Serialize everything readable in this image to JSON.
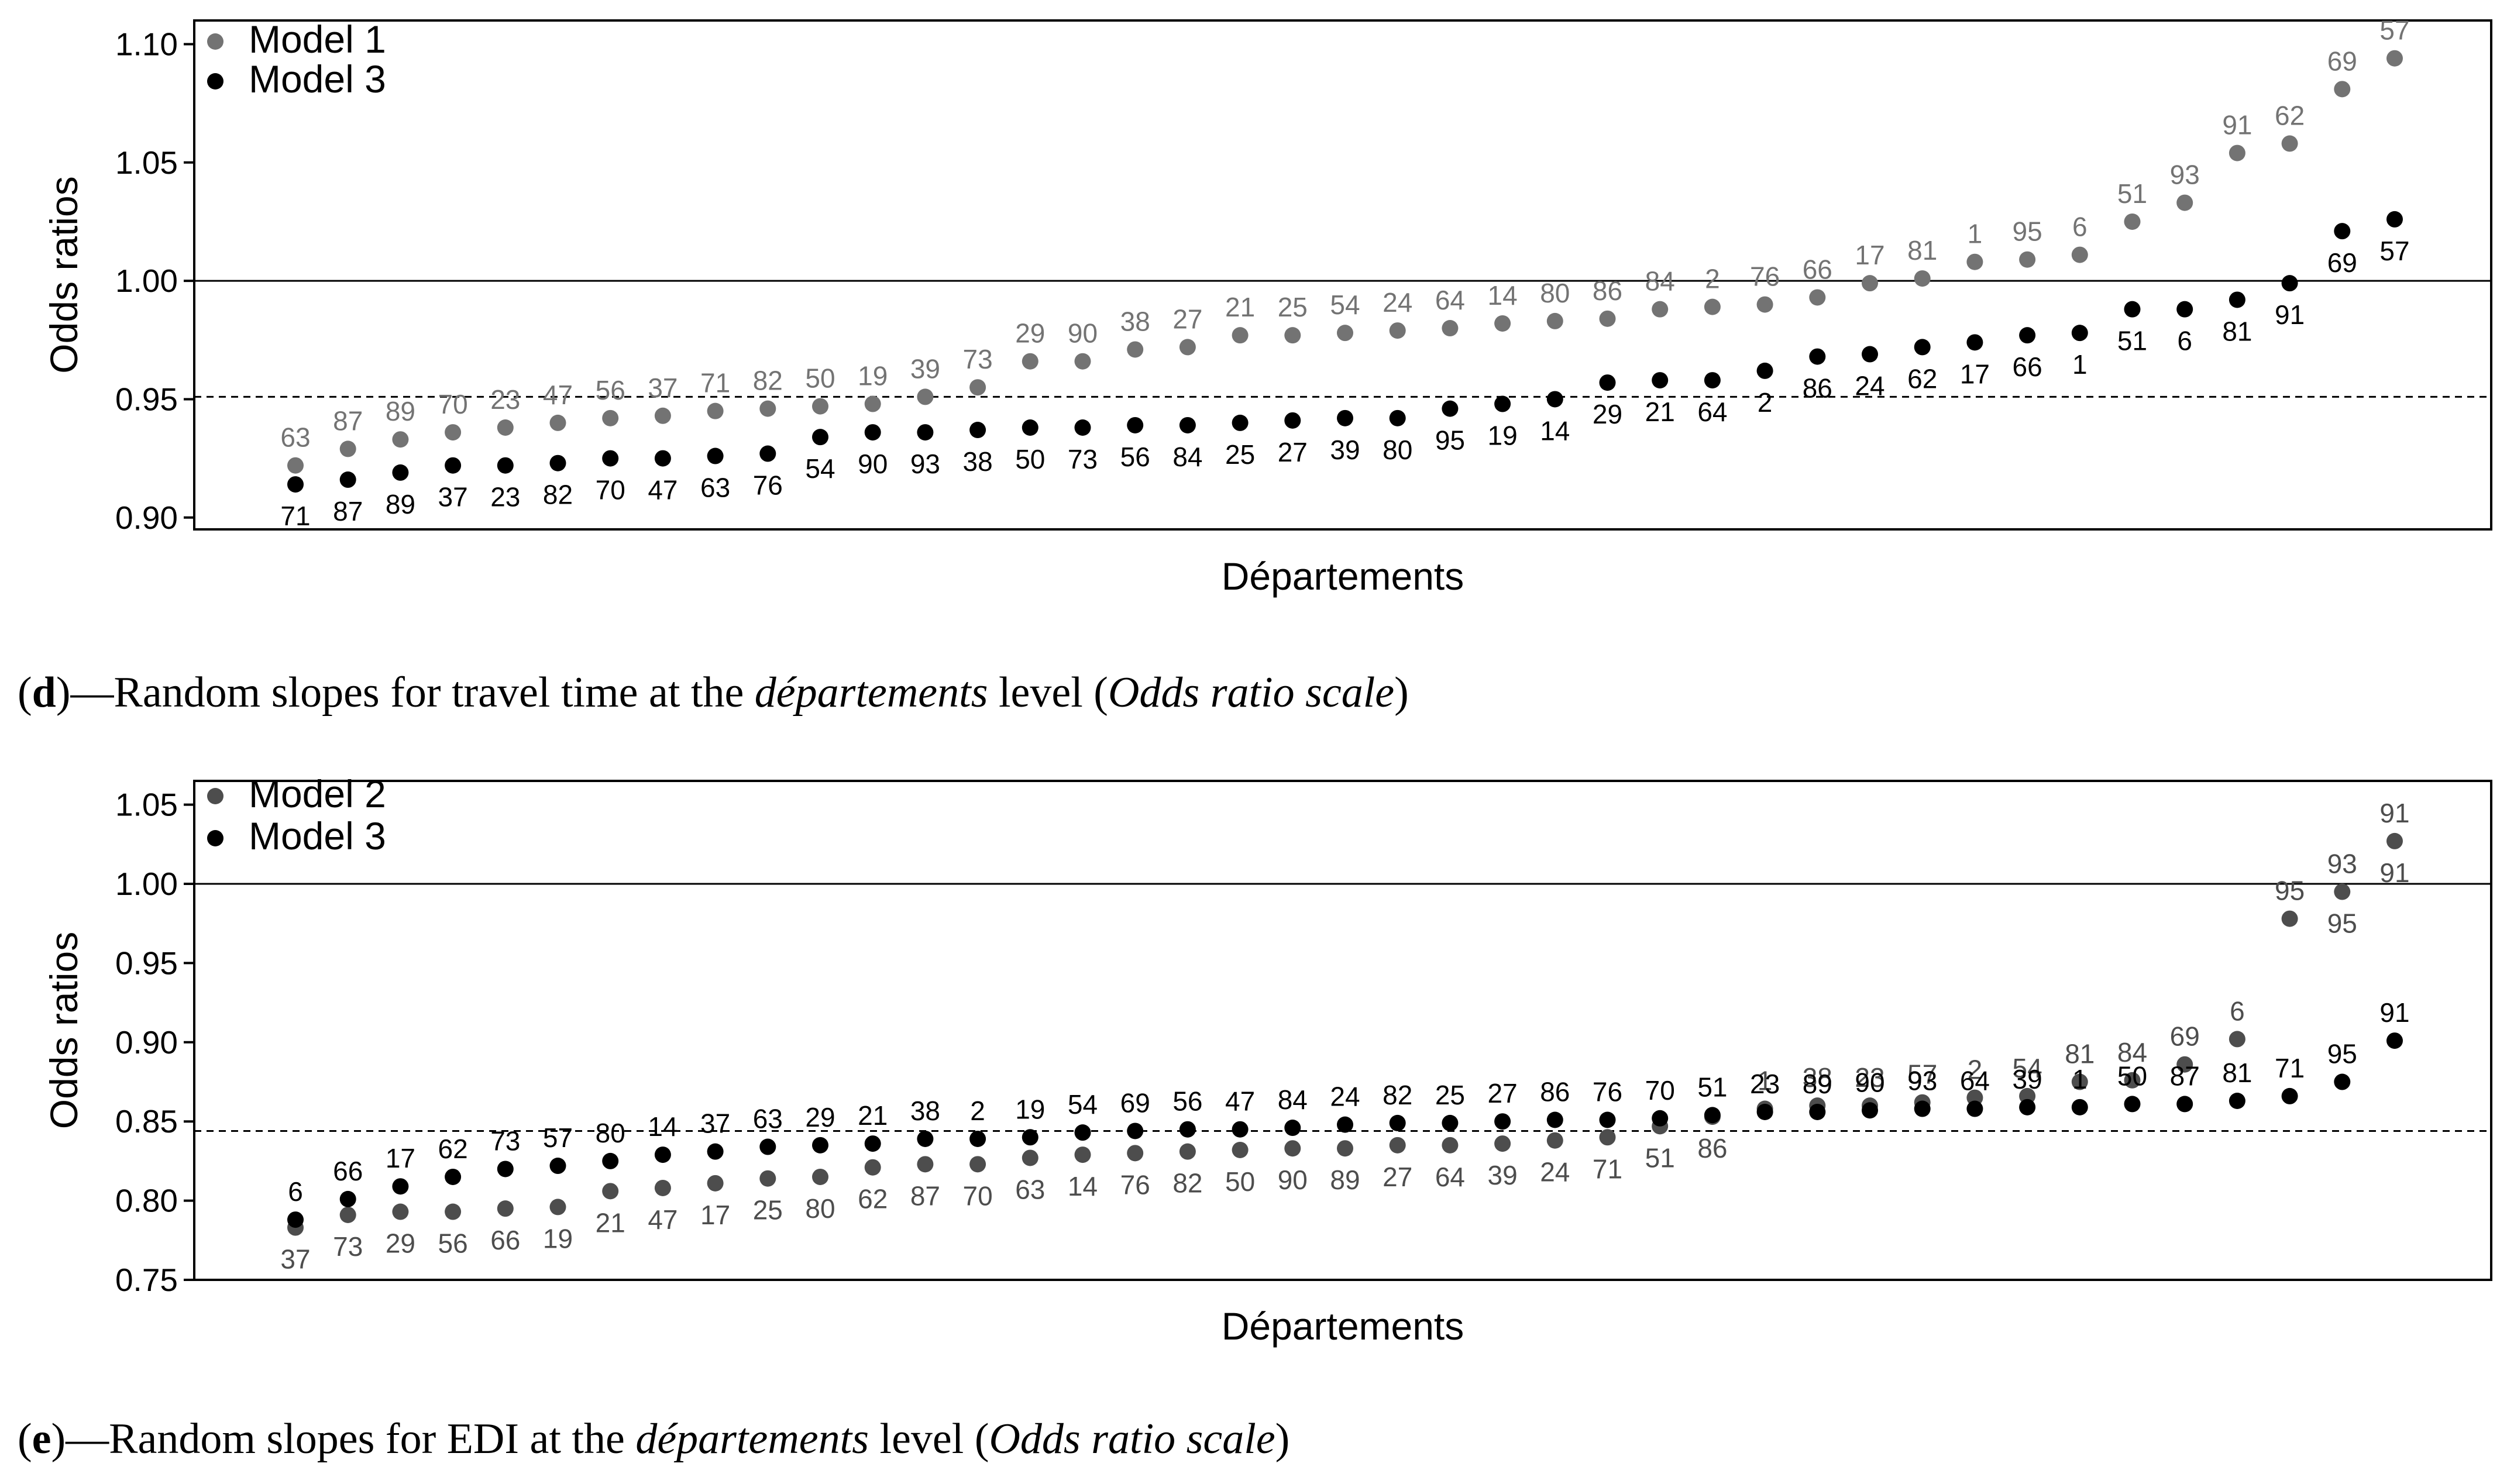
{
  "captions": [
    {
      "open": "(",
      "letter": "d",
      "pre": ")—Random slopes for travel time at the ",
      "italic1": "départements",
      "mid": " level (",
      "italic2": "Odds ratio scale",
      "close": ")"
    },
    {
      "open": "(",
      "letter": "e",
      "pre": ")—Random slopes for EDI at the ",
      "italic1": "départements",
      "mid": " level (",
      "italic2": "Odds ratio scale",
      "close": ")"
    }
  ],
  "chart_data": [
    {
      "type": "scatter",
      "title": "",
      "xlabel": "Départements",
      "ylabel": "Odds ratios",
      "ylim": [
        0.895,
        1.11
      ],
      "yticks": [
        0.9,
        0.95,
        1.0,
        1.05,
        1.1
      ],
      "ytick_labels": [
        "0.90",
        "0.95",
        "1.00",
        "1.05",
        "1.10"
      ],
      "reference_solid": 1.0,
      "reference_dashed": 0.951,
      "legend_position": "top-left",
      "x_positions": 41,
      "series": [
        {
          "name": "Model 1",
          "color": "#737373",
          "label_side": "above",
          "labels": [
            "63",
            "87",
            "89",
            "70",
            "23",
            "47",
            "56",
            "37",
            "71",
            "82",
            "50",
            "19",
            "39",
            "73",
            "29",
            "90",
            "38",
            "27",
            "21",
            "25",
            "54",
            "24",
            "64",
            "14",
            "80",
            "86",
            "84",
            "2",
            "76",
            "66",
            "17",
            "81",
            "1",
            "95",
            "6",
            "51",
            "93",
            "91",
            "62",
            "69",
            "57"
          ],
          "values": [
            0.922,
            0.929,
            0.933,
            0.936,
            0.938,
            0.94,
            0.942,
            0.943,
            0.945,
            0.946,
            0.947,
            0.948,
            0.951,
            0.955,
            0.966,
            0.966,
            0.971,
            0.972,
            0.977,
            0.977,
            0.978,
            0.979,
            0.98,
            0.982,
            0.983,
            0.984,
            0.988,
            0.989,
            0.99,
            0.993,
            0.999,
            1.001,
            1.008,
            1.009,
            1.011,
            1.025,
            1.033,
            1.054,
            1.058,
            1.081,
            1.094
          ]
        },
        {
          "name": "Model 3",
          "color": "#000000",
          "label_side": "below",
          "labels": [
            "71",
            "87",
            "89",
            "37",
            "23",
            "82",
            "70",
            "47",
            "63",
            "76",
            "54",
            "90",
            "93",
            "38",
            "50",
            "73",
            "56",
            "84",
            "25",
            "27",
            "39",
            "80",
            "95",
            "19",
            "14",
            "29",
            "21",
            "64",
            "2",
            "86",
            "24",
            "62",
            "17",
            "66",
            "1",
            "51",
            "6",
            "81",
            "91",
            "69",
            "57"
          ],
          "values": [
            0.914,
            0.916,
            0.919,
            0.922,
            0.922,
            0.923,
            0.925,
            0.925,
            0.926,
            0.927,
            0.934,
            0.936,
            0.936,
            0.937,
            0.938,
            0.938,
            0.939,
            0.939,
            0.94,
            0.941,
            0.942,
            0.942,
            0.946,
            0.948,
            0.95,
            0.957,
            0.958,
            0.958,
            0.962,
            0.968,
            0.969,
            0.972,
            0.974,
            0.977,
            0.978,
            0.988,
            0.988,
            0.992,
            0.999,
            1.021,
            1.026
          ]
        }
      ]
    },
    {
      "type": "scatter",
      "title": "",
      "xlabel": "Départements",
      "ylabel": "Odds ratios",
      "ylim": [
        0.75,
        1.065
      ],
      "yticks": [
        0.75,
        0.8,
        0.85,
        0.9,
        0.95,
        1.0,
        1.05
      ],
      "ytick_labels": [
        "0.75",
        "0.80",
        "0.85",
        "0.90",
        "0.95",
        "1.00",
        "1.05"
      ],
      "reference_solid": 1.0,
      "reference_dashed": 0.844,
      "legend_position": "top-left",
      "x_positions": 41,
      "series": [
        {
          "name": "Model 2",
          "color": "#4d4d4d",
          "label_side": "below",
          "labels": [
            "37",
            "73",
            "29",
            "56",
            "66",
            "19",
            "21",
            "47",
            "17",
            "25",
            "80",
            "62",
            "87",
            "70",
            "63",
            "14",
            "76",
            "82",
            "50",
            "90",
            "89",
            "27",
            "64",
            "39",
            "24",
            "71",
            "51",
            "86",
            "23",
            "89",
            "90",
            "93",
            "64",
            "39",
            "1",
            "50",
            "87",
            "81",
            "71",
            "95",
            "91"
          ],
          "values": [
            0.783,
            0.791,
            0.793,
            0.793,
            0.795,
            0.796,
            0.806,
            0.808,
            0.811,
            0.814,
            0.815,
            0.821,
            0.823,
            0.823,
            0.827,
            0.829,
            0.83,
            0.831,
            0.832,
            0.833,
            0.833,
            0.835,
            0.835,
            0.836,
            0.838,
            0.84,
            0.847,
            0.853,
            0.858,
            0.86,
            0.86,
            0.862,
            0.865,
            0.866,
            0.875,
            0.876,
            0.886,
            0.902,
            0.978,
            0.995,
            1.027
          ],
          "label_values": [
            true,
            true,
            true,
            true,
            true,
            true,
            true,
            true,
            true,
            true,
            true,
            true,
            true,
            true,
            true,
            true,
            true,
            true,
            true,
            true,
            true,
            true,
            true,
            true,
            true,
            true,
            true,
            true,
            false,
            false,
            false,
            false,
            false,
            false,
            false,
            false,
            false,
            false,
            false,
            true,
            true
          ],
          "labels_above": [
            "1",
            "38",
            "23",
            "57",
            "2",
            "54",
            "81",
            "84",
            "69",
            "6",
            "95",
            "93",
            "91"
          ],
          "labels_above_index": [
            28,
            29,
            30,
            31,
            32,
            33,
            34,
            35,
            36,
            37,
            38,
            39,
            40
          ]
        },
        {
          "name": "Model 3",
          "color": "#000000",
          "label_side": "above",
          "labels": [
            "6",
            "66",
            "17",
            "62",
            "73",
            "57",
            "80",
            "14",
            "37",
            "63",
            "29",
            "21",
            "38",
            "2",
            "19",
            "54",
            "69",
            "56",
            "47",
            "84",
            "24",
            "82",
            "25",
            "27",
            "86",
            "76",
            "70",
            "51",
            "23",
            "89",
            "90",
            "93",
            "64",
            "39",
            "1",
            "50",
            "87",
            "81",
            "71",
            "95",
            "91"
          ],
          "values": [
            0.788,
            0.801,
            0.809,
            0.815,
            0.82,
            0.822,
            0.825,
            0.829,
            0.831,
            0.834,
            0.835,
            0.836,
            0.839,
            0.839,
            0.84,
            0.843,
            0.844,
            0.845,
            0.845,
            0.846,
            0.848,
            0.849,
            0.849,
            0.85,
            0.851,
            0.851,
            0.852,
            0.854,
            0.856,
            0.856,
            0.857,
            0.858,
            0.858,
            0.859,
            0.859,
            0.861,
            0.861,
            0.863,
            0.866,
            0.875,
            0.901
          ]
        }
      ]
    }
  ]
}
